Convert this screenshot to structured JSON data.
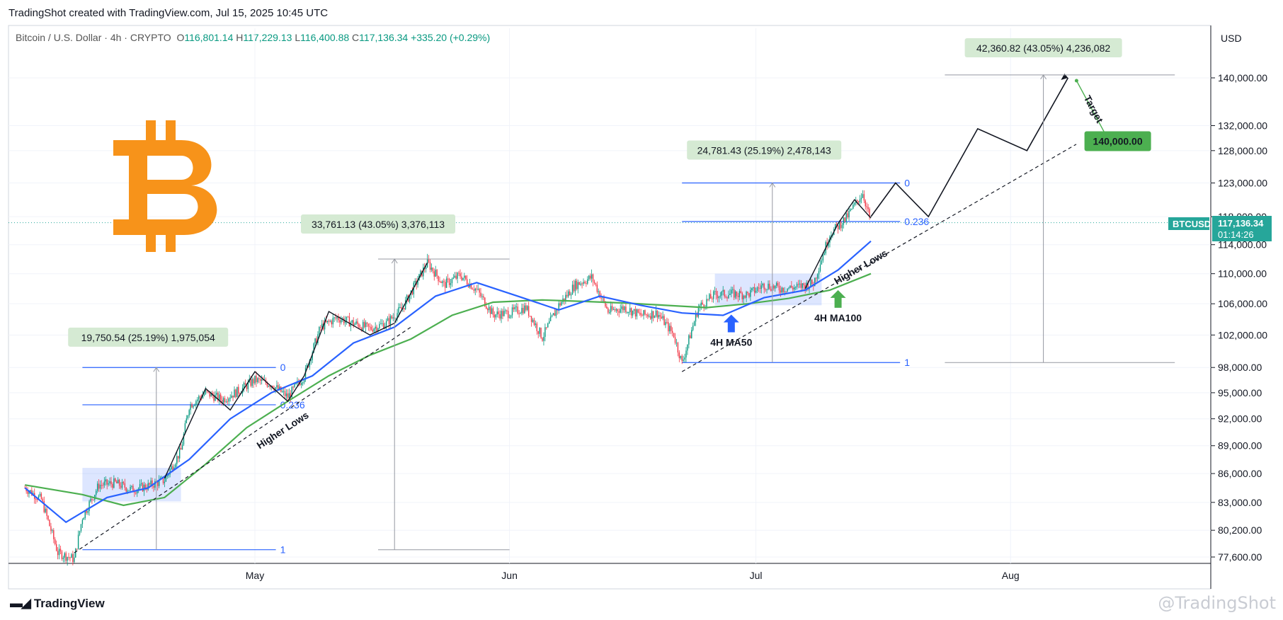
{
  "header": {
    "credit": "TradingShot created with TradingView.com, Jul 15, 2025 10:45 UTC",
    "symbol": "Bitcoin / U.S. Dollar · 4h · CRYPTO",
    "o_label": "O",
    "o": "116,801.14",
    "h_label": "H",
    "h": "117,229.13",
    "l_label": "L",
    "l": "116,400.88",
    "c_label": "C",
    "c": "117,136.34",
    "change": "+335.20 (+0.29%)"
  },
  "axis": {
    "currency": "USD",
    "ticker": "BTCUSD",
    "price": "117,136.34",
    "countdown": "01:14:26",
    "target_price": "140,000.00"
  },
  "annotations": {
    "box1": "19,750.54 (25.19%) 1,975,054",
    "box2": "33,761.13 (43.05%) 3,376,113",
    "box3": "24,781.43 (25.19%) 2,478,143",
    "box4": "42,360.82 (43.05%) 4,236,082",
    "fib_0": "0",
    "fib_0236": "0.236",
    "fib_1": "1",
    "higher_lows": "Higher Lows",
    "target": "Target",
    "ma50": "4H MA50",
    "ma100": "4H MA100"
  },
  "footer": {
    "logo": "TradingView",
    "watermark": "@TradingShot"
  },
  "colors": {
    "up": "#089981",
    "down": "#f23645",
    "ma50": "#2962ff",
    "ma100": "#4caf50",
    "btc_orange": "#f7931a",
    "label_bg": "#d5ead3",
    "target_bg": "#4caf50"
  },
  "chart_data": {
    "type": "line",
    "title": "",
    "xlabel": "",
    "ylabel": "",
    "ylim": [
      77000,
      146000
    ],
    "y_ticks": [
      77600,
      80200,
      83000,
      86000,
      89000,
      92000,
      95000,
      98000,
      102000,
      106000,
      110000,
      114000,
      118000,
      123000,
      128000,
      132000,
      140000
    ],
    "y_tick_labels": [
      "77,600.00",
      "80,200.00",
      "83,000.00",
      "86,000.00",
      "89,000.00",
      "92,000.00",
      "95,000.00",
      "98,000.00",
      "102,000.00",
      "106,000.00",
      "110,000.00",
      "114,000.00",
      "118,000.00",
      "123,000.00",
      "128,000.00",
      "132,000.00",
      "140,000.00"
    ],
    "x_labels": [
      "May",
      "Jun",
      "Jul",
      "Aug"
    ],
    "x_label_dates": [
      "2025-05-01",
      "2025-06-01",
      "2025-07-01",
      "2025-08-01"
    ],
    "date_range": [
      "2025-04-03",
      "2025-08-25"
    ],
    "series": [
      {
        "name": "BTCUSD",
        "points": [
          [
            "2025-04-03",
            84500
          ],
          [
            "2025-04-05",
            83300
          ],
          [
            "2025-04-07",
            78000
          ],
          [
            "2025-04-09",
            77400
          ],
          [
            "2025-04-10",
            81500
          ],
          [
            "2025-04-12",
            84800
          ],
          [
            "2025-04-14",
            85000
          ],
          [
            "2025-04-16",
            84300
          ],
          [
            "2025-04-18",
            84700
          ],
          [
            "2025-04-20",
            85300
          ],
          [
            "2025-04-22",
            88500
          ],
          [
            "2025-04-23",
            93500
          ],
          [
            "2025-04-25",
            95000
          ],
          [
            "2025-04-27",
            94200
          ],
          [
            "2025-04-29",
            95200
          ],
          [
            "2025-05-01",
            96500
          ],
          [
            "2025-05-03",
            96000
          ],
          [
            "2025-05-05",
            94500
          ],
          [
            "2025-05-07",
            97000
          ],
          [
            "2025-05-09",
            103000
          ],
          [
            "2025-05-11",
            104200
          ],
          [
            "2025-05-13",
            103500
          ],
          [
            "2025-05-15",
            102800
          ],
          [
            "2025-05-17",
            103500
          ],
          [
            "2025-05-19",
            105500
          ],
          [
            "2025-05-21",
            109500
          ],
          [
            "2025-05-22",
            111500
          ],
          [
            "2025-05-24",
            108500
          ],
          [
            "2025-05-26",
            109800
          ],
          [
            "2025-05-28",
            107800
          ],
          [
            "2025-05-30",
            104600
          ],
          [
            "2025-06-01",
            104800
          ],
          [
            "2025-06-03",
            105500
          ],
          [
            "2025-06-05",
            101700
          ],
          [
            "2025-06-07",
            105800
          ],
          [
            "2025-06-09",
            108500
          ],
          [
            "2025-06-11",
            109500
          ],
          [
            "2025-06-13",
            105000
          ],
          [
            "2025-06-15",
            105500
          ],
          [
            "2025-06-17",
            104500
          ],
          [
            "2025-06-19",
            104800
          ],
          [
            "2025-06-21",
            102000
          ],
          [
            "2025-06-22",
            98500
          ],
          [
            "2025-06-24",
            105500
          ],
          [
            "2025-06-26",
            107200
          ],
          [
            "2025-06-28",
            107300
          ],
          [
            "2025-06-30",
            107200
          ],
          [
            "2025-07-02",
            108500
          ],
          [
            "2025-07-04",
            108000
          ],
          [
            "2025-07-06",
            108200
          ],
          [
            "2025-07-08",
            108700
          ],
          [
            "2025-07-10",
            115500
          ],
          [
            "2025-07-12",
            117800
          ],
          [
            "2025-07-14",
            121500
          ],
          [
            "2025-07-15",
            117136
          ]
        ]
      },
      {
        "name": "4H MA50",
        "points": [
          [
            "2025-04-03",
            84500
          ],
          [
            "2025-04-08",
            81000
          ],
          [
            "2025-04-13",
            83500
          ],
          [
            "2025-04-18",
            84500
          ],
          [
            "2025-04-23",
            87500
          ],
          [
            "2025-04-28",
            92000
          ],
          [
            "2025-05-03",
            95000
          ],
          [
            "2025-05-08",
            97000
          ],
          [
            "2025-05-13",
            101000
          ],
          [
            "2025-05-18",
            103000
          ],
          [
            "2025-05-23",
            107000
          ],
          [
            "2025-05-28",
            108800
          ],
          [
            "2025-06-02",
            107000
          ],
          [
            "2025-06-07",
            105200
          ],
          [
            "2025-06-12",
            107000
          ],
          [
            "2025-06-17",
            105800
          ],
          [
            "2025-06-22",
            104800
          ],
          [
            "2025-06-27",
            104500
          ],
          [
            "2025-07-02",
            106800
          ],
          [
            "2025-07-07",
            107800
          ],
          [
            "2025-07-11",
            110500
          ],
          [
            "2025-07-15",
            114500
          ]
        ]
      },
      {
        "name": "4H MA100",
        "points": [
          [
            "2025-04-03",
            84800
          ],
          [
            "2025-04-10",
            83800
          ],
          [
            "2025-04-15",
            82700
          ],
          [
            "2025-04-20",
            83500
          ],
          [
            "2025-04-25",
            87000
          ],
          [
            "2025-04-30",
            91000
          ],
          [
            "2025-05-05",
            94000
          ],
          [
            "2025-05-10",
            97000
          ],
          [
            "2025-05-15",
            99500
          ],
          [
            "2025-05-20",
            101500
          ],
          [
            "2025-05-25",
            104500
          ],
          [
            "2025-05-30",
            106200
          ],
          [
            "2025-06-05",
            106500
          ],
          [
            "2025-06-10",
            106300
          ],
          [
            "2025-06-15",
            106100
          ],
          [
            "2025-06-20",
            105800
          ],
          [
            "2025-06-25",
            105500
          ],
          [
            "2025-06-30",
            106000
          ],
          [
            "2025-07-05",
            106700
          ],
          [
            "2025-07-10",
            107800
          ],
          [
            "2025-07-15",
            110000
          ]
        ]
      }
    ],
    "projection": [
      [
        "2025-07-15",
        118000
      ],
      [
        "2025-07-18",
        123000
      ],
      [
        "2025-07-22",
        118000
      ],
      [
        "2025-07-28",
        131500
      ],
      [
        "2025-08-03",
        128000
      ],
      [
        "2025-08-08",
        140000
      ]
    ],
    "higher_lows_lines": [
      [
        [
          "2025-04-09",
          78000
        ],
        [
          "2025-05-20",
          103000
        ]
      ],
      [
        [
          "2025-06-22",
          97500
        ],
        [
          "2025-08-09",
          129000
        ]
      ]
    ],
    "fib_levels": [
      {
        "label": "0",
        "value": 123000,
        "from": "2025-06-22",
        "to": "2025-07-22"
      },
      {
        "label": "0.236",
        "value": 117300,
        "from": "2025-06-22",
        "to": "2025-07-22"
      },
      {
        "label": "1",
        "value": 98600,
        "from": "2025-06-22",
        "to": "2025-07-22"
      },
      {
        "label": "0",
        "value": 98000,
        "from": "2025-04-10",
        "to": "2025-05-07"
      },
      {
        "label": "0.236",
        "value": 93600,
        "from": "2025-04-10",
        "to": "2025-05-07"
      },
      {
        "label": "1",
        "value": 78300,
        "from": "2025-04-10",
        "to": "2025-05-07"
      }
    ]
  }
}
